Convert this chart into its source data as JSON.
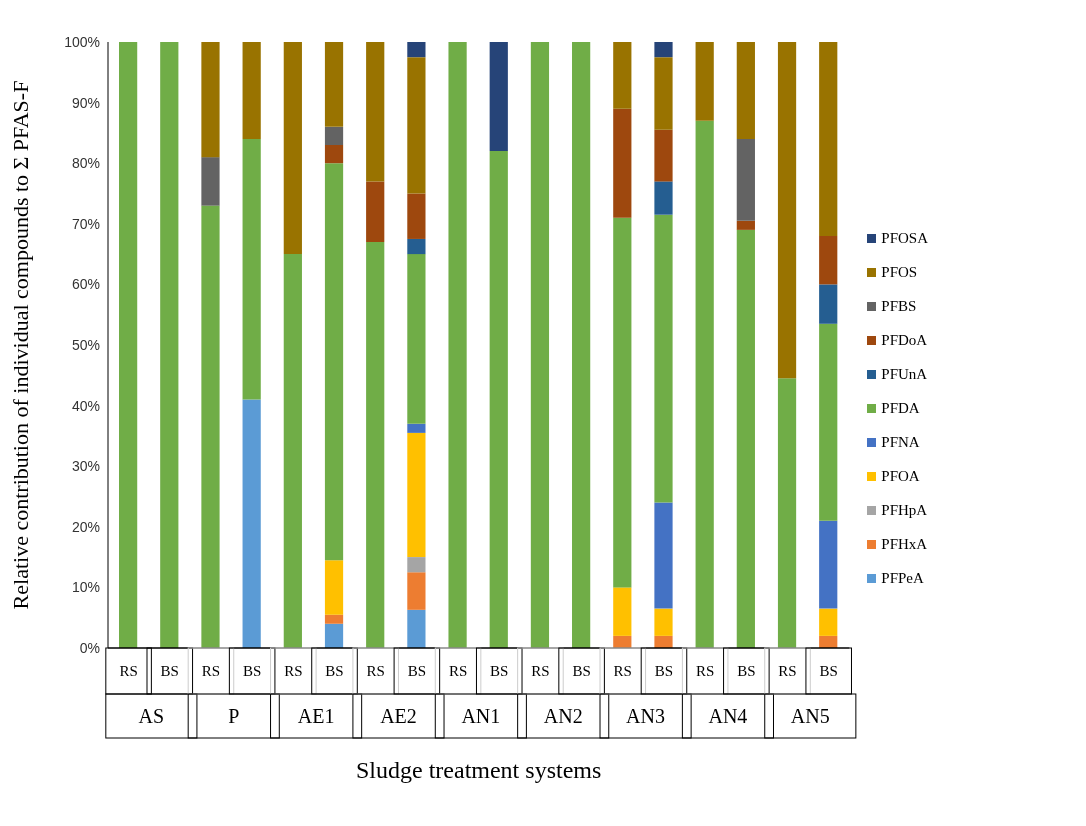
{
  "chart_data": {
    "type": "bar",
    "stacked": true,
    "xlabel": "Sludge treatment systems",
    "ylabel": "Relative contribution of individual compounds to Σ PFAS-F",
    "categories": [
      "RS",
      "BS",
      "RS",
      "BS",
      "RS",
      "BS",
      "RS",
      "BS",
      "RS",
      "BS",
      "RS",
      "BS",
      "RS",
      "BS",
      "RS",
      "BS",
      "RS",
      "BS"
    ],
    "annotations": [
      "AS",
      "P",
      "AE1",
      "AE2",
      "AN1",
      "AN2",
      "AN3",
      "AN4",
      "AN5"
    ],
    "ylim": [
      0,
      100
    ],
    "yticks": [
      {
        "value": 0,
        "label": "0%"
      },
      {
        "value": 10,
        "label": "10%"
      },
      {
        "value": 20,
        "label": "20%"
      },
      {
        "value": 30,
        "label": "30%"
      },
      {
        "value": 40,
        "label": "40%"
      },
      {
        "value": 50,
        "label": "50%"
      },
      {
        "value": 60,
        "label": "60%"
      },
      {
        "value": 70,
        "label": "70%"
      },
      {
        "value": 80,
        "label": "80%"
      },
      {
        "value": 90,
        "label": "90%"
      },
      {
        "value": 100,
        "label": "100%"
      }
    ],
    "legend": "right",
    "series": [
      {
        "name": "PFPeA",
        "color": "#5b9bd5",
        "values": [
          0,
          0,
          0,
          41,
          0,
          4,
          0,
          6.3,
          0,
          0,
          0,
          0,
          0,
          0,
          0,
          0,
          0,
          0
        ]
      },
      {
        "name": "PFHxA",
        "color": "#ed7d31",
        "values": [
          0,
          0,
          0,
          0,
          0,
          1.5,
          0,
          6.2,
          0,
          0,
          0,
          0,
          2,
          2,
          0,
          0,
          0,
          2
        ]
      },
      {
        "name": "PFHpA",
        "color": "#a5a5a5",
        "values": [
          0,
          0,
          0,
          0,
          0,
          0,
          0,
          2.5,
          0,
          0,
          0,
          0,
          0,
          0,
          0,
          0,
          0,
          0
        ]
      },
      {
        "name": "PFOA",
        "color": "#ffc000",
        "values": [
          0,
          0,
          0,
          0,
          0,
          9,
          0,
          20.5,
          0,
          0,
          0,
          0,
          8,
          4.5,
          0,
          0,
          0,
          4.5
        ]
      },
      {
        "name": "PFNA",
        "color": "#4472c4",
        "values": [
          0,
          0,
          0,
          0,
          0,
          0,
          0,
          1.5,
          0,
          0,
          0,
          0,
          0,
          17.5,
          0,
          0,
          0,
          14.5
        ]
      },
      {
        "name": "PFDA",
        "color": "#70ad47",
        "values": [
          100,
          100,
          73,
          43,
          65,
          65.5,
          67,
          28,
          100,
          82,
          100,
          100,
          61,
          47.5,
          87,
          69,
          44.5,
          32.5
        ]
      },
      {
        "name": "PFUnA",
        "color": "#255e91",
        "values": [
          0,
          0,
          0,
          0,
          0,
          0,
          0,
          2.5,
          0,
          0,
          0,
          0,
          0,
          5.5,
          0,
          0,
          0,
          6.5
        ]
      },
      {
        "name": "PFDoA",
        "color": "#9e480e",
        "values": [
          0,
          0,
          0,
          0,
          0,
          3,
          10,
          7.5,
          0,
          0,
          0,
          0,
          18,
          8.5,
          0,
          1.5,
          0,
          8
        ]
      },
      {
        "name": "PFBS",
        "color": "#636363",
        "values": [
          0,
          0,
          8,
          0,
          0,
          3,
          0,
          0,
          0,
          0,
          0,
          0,
          0,
          0,
          0,
          13.5,
          0,
          0
        ]
      },
      {
        "name": "PFOS",
        "color": "#997300",
        "values": [
          0,
          0,
          19,
          16,
          35,
          14,
          23,
          22.5,
          0,
          0,
          0,
          0,
          11,
          12,
          13,
          16,
          55.5,
          32
        ]
      },
      {
        "name": "PFOSA",
        "color": "#264478",
        "values": [
          0,
          0,
          0,
          0,
          0,
          0,
          0,
          2.5,
          0,
          18,
          0,
          0,
          0,
          2.5,
          0,
          0,
          0,
          0
        ]
      }
    ]
  }
}
